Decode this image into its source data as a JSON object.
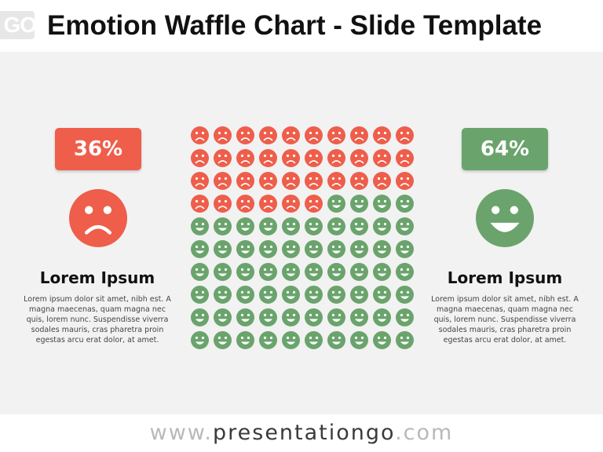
{
  "slide": {
    "title": "Emotion Waffle Chart - Slide Template",
    "logo_text": "GO"
  },
  "left": {
    "percent": "36%",
    "heading": "Lorem Ipsum",
    "body": "Lorem ipsum dolor sit amet, nibh est. A magna maecenas, quam magna nec quis, lorem nunc. Suspendisse viverra sodales mauris, cras pharetra proin egestas arcu erat dolor, at amet.",
    "emotion_icon": "sad-face-icon",
    "color": "#ee5e4b"
  },
  "right": {
    "percent": "64%",
    "heading": "Lorem Ipsum",
    "body": "Lorem ipsum dolor sit amet, nibh est. A magna maecenas, quam magna nec quis, lorem nunc. Suspendisse viverra sodales mauris, cras pharetra proin egestas arcu erat dolor, at amet.",
    "emotion_icon": "happy-face-icon",
    "color": "#6aa46c"
  },
  "footer": {
    "prefix": "www.",
    "domain": "presentationgo",
    "suffix": ".com"
  },
  "chart_data": {
    "type": "waffle",
    "rows": 10,
    "columns": 10,
    "fill_order": "row-major from top-left",
    "series": [
      {
        "name": "sad",
        "value": 36,
        "color": "#ee5e4b",
        "icon": "sad-face-icon"
      },
      {
        "name": "happy",
        "value": 64,
        "color": "#6aa46c",
        "icon": "happy-face-icon"
      }
    ]
  }
}
